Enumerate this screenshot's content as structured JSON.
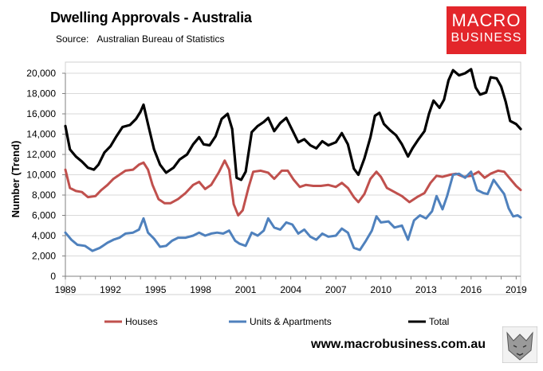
{
  "header": {
    "title": "Dwelling Approvals - Australia",
    "source_label": "Source:",
    "source_text": "Australian Bureau of Statistics"
  },
  "logo": {
    "line1": "MACRO",
    "line2": "BUSINESS"
  },
  "footer": {
    "website": "www.macrobusiness.com.au"
  },
  "colors": {
    "houses": "#c0504d",
    "units": "#4f81bd",
    "total": "#000000"
  },
  "chart_data": {
    "type": "line",
    "ylabel": "Number (Trend)",
    "ylim": [
      0,
      21000
    ],
    "xlim": [
      1989,
      2019.3
    ],
    "yticks": [
      0,
      2000,
      4000,
      6000,
      8000,
      10000,
      12000,
      14000,
      16000,
      18000,
      20000
    ],
    "ytick_labels": [
      "0",
      "2,000",
      "4,000",
      "6,000",
      "8,000",
      "10,000",
      "12,000",
      "14,000",
      "16,000",
      "18,000",
      "20,000"
    ],
    "xticks": [
      1989,
      1992,
      1995,
      1998,
      2001,
      2004,
      2007,
      2010,
      2013,
      2016,
      2019
    ],
    "xtick_labels": [
      "1989",
      "1992",
      "1995",
      "1998",
      "2001",
      "2004",
      "2007",
      "2010",
      "2013",
      "2016",
      "2019"
    ],
    "grid": "horizontal",
    "legend": "bottom",
    "series": [
      {
        "name": "Houses",
        "points": [
          [
            1989.0,
            10500
          ],
          [
            1989.3,
            8700
          ],
          [
            1989.7,
            8400
          ],
          [
            1990.1,
            8300
          ],
          [
            1990.5,
            7800
          ],
          [
            1991.0,
            7900
          ],
          [
            1991.4,
            8500
          ],
          [
            1991.8,
            9000
          ],
          [
            1992.2,
            9600
          ],
          [
            1992.6,
            10000
          ],
          [
            1993.0,
            10400
          ],
          [
            1993.5,
            10500
          ],
          [
            1993.9,
            11000
          ],
          [
            1994.2,
            11200
          ],
          [
            1994.5,
            10500
          ],
          [
            1994.8,
            9000
          ],
          [
            1995.2,
            7600
          ],
          [
            1995.6,
            7200
          ],
          [
            1996.0,
            7200
          ],
          [
            1996.5,
            7600
          ],
          [
            1997.0,
            8200
          ],
          [
            1997.5,
            9000
          ],
          [
            1997.9,
            9300
          ],
          [
            1998.3,
            8600
          ],
          [
            1998.7,
            9000
          ],
          [
            1999.2,
            10200
          ],
          [
            1999.6,
            11400
          ],
          [
            1999.9,
            10500
          ],
          [
            2000.2,
            7100
          ],
          [
            2000.5,
            6000
          ],
          [
            2000.8,
            6500
          ],
          [
            2001.2,
            8800
          ],
          [
            2001.5,
            10300
          ],
          [
            2002.0,
            10400
          ],
          [
            2002.5,
            10200
          ],
          [
            2002.9,
            9600
          ],
          [
            2003.4,
            10400
          ],
          [
            2003.8,
            10400
          ],
          [
            2004.2,
            9500
          ],
          [
            2004.6,
            8800
          ],
          [
            2005.0,
            9000
          ],
          [
            2005.5,
            8900
          ],
          [
            2006.0,
            8900
          ],
          [
            2006.5,
            9000
          ],
          [
            2007.0,
            8800
          ],
          [
            2007.4,
            9200
          ],
          [
            2007.8,
            8700
          ],
          [
            2008.2,
            7800
          ],
          [
            2008.5,
            7300
          ],
          [
            2008.9,
            8100
          ],
          [
            2009.3,
            9600
          ],
          [
            2009.7,
            10300
          ],
          [
            2010.0,
            9800
          ],
          [
            2010.4,
            8700
          ],
          [
            2010.9,
            8300
          ],
          [
            2011.4,
            7900
          ],
          [
            2011.9,
            7300
          ],
          [
            2012.4,
            7800
          ],
          [
            2012.9,
            8200
          ],
          [
            2013.3,
            9200
          ],
          [
            2013.7,
            9900
          ],
          [
            2014.1,
            9800
          ],
          [
            2014.6,
            10000
          ],
          [
            2015.0,
            10100
          ],
          [
            2015.5,
            9800
          ],
          [
            2016.0,
            9900
          ],
          [
            2016.5,
            10300
          ],
          [
            2016.9,
            9700
          ],
          [
            2017.3,
            10100
          ],
          [
            2017.8,
            10400
          ],
          [
            2018.2,
            10300
          ],
          [
            2018.6,
            9600
          ],
          [
            2019.0,
            8900
          ],
          [
            2019.3,
            8500
          ]
        ]
      },
      {
        "name": "Units & Apartments",
        "points": [
          [
            1989.0,
            4300
          ],
          [
            1989.4,
            3600
          ],
          [
            1989.8,
            3100
          ],
          [
            1990.3,
            3000
          ],
          [
            1990.8,
            2500
          ],
          [
            1991.3,
            2800
          ],
          [
            1991.8,
            3300
          ],
          [
            1992.2,
            3600
          ],
          [
            1992.6,
            3800
          ],
          [
            1993.0,
            4200
          ],
          [
            1993.5,
            4300
          ],
          [
            1993.9,
            4600
          ],
          [
            1994.2,
            5700
          ],
          [
            1994.5,
            4300
          ],
          [
            1994.9,
            3700
          ],
          [
            1995.3,
            2900
          ],
          [
            1995.7,
            3000
          ],
          [
            1996.1,
            3500
          ],
          [
            1996.5,
            3800
          ],
          [
            1997.0,
            3800
          ],
          [
            1997.5,
            4000
          ],
          [
            1997.9,
            4300
          ],
          [
            1998.3,
            4000
          ],
          [
            1998.7,
            4200
          ],
          [
            1999.1,
            4300
          ],
          [
            1999.5,
            4200
          ],
          [
            1999.9,
            4500
          ],
          [
            2000.3,
            3500
          ],
          [
            2000.6,
            3200
          ],
          [
            2001.0,
            3000
          ],
          [
            2001.4,
            4300
          ],
          [
            2001.8,
            4000
          ],
          [
            2002.2,
            4500
          ],
          [
            2002.5,
            5700
          ],
          [
            2002.9,
            4800
          ],
          [
            2003.3,
            4600
          ],
          [
            2003.7,
            5300
          ],
          [
            2004.1,
            5100
          ],
          [
            2004.5,
            4200
          ],
          [
            2004.9,
            4600
          ],
          [
            2005.3,
            3900
          ],
          [
            2005.7,
            3600
          ],
          [
            2006.1,
            4200
          ],
          [
            2006.5,
            3900
          ],
          [
            2007.0,
            4000
          ],
          [
            2007.4,
            4700
          ],
          [
            2007.8,
            4300
          ],
          [
            2008.2,
            2800
          ],
          [
            2008.6,
            2600
          ],
          [
            2009.0,
            3500
          ],
          [
            2009.4,
            4500
          ],
          [
            2009.7,
            5900
          ],
          [
            2010.0,
            5300
          ],
          [
            2010.5,
            5400
          ],
          [
            2010.9,
            4800
          ],
          [
            2011.4,
            5000
          ],
          [
            2011.8,
            3600
          ],
          [
            2012.2,
            5500
          ],
          [
            2012.6,
            6000
          ],
          [
            2013.0,
            5700
          ],
          [
            2013.4,
            6400
          ],
          [
            2013.7,
            7900
          ],
          [
            2014.1,
            6600
          ],
          [
            2014.4,
            7900
          ],
          [
            2014.8,
            10000
          ],
          [
            2015.2,
            10100
          ],
          [
            2015.6,
            9700
          ],
          [
            2016.0,
            10300
          ],
          [
            2016.4,
            8500
          ],
          [
            2016.8,
            8200
          ],
          [
            2017.1,
            8100
          ],
          [
            2017.5,
            9500
          ],
          [
            2017.9,
            8700
          ],
          [
            2018.2,
            8100
          ],
          [
            2018.5,
            6700
          ],
          [
            2018.8,
            5900
          ],
          [
            2019.1,
            6000
          ],
          [
            2019.3,
            5800
          ]
        ]
      },
      {
        "name": "Total",
        "points": [
          [
            1989.0,
            14800
          ],
          [
            1989.3,
            12500
          ],
          [
            1989.7,
            11800
          ],
          [
            1990.1,
            11300
          ],
          [
            1990.5,
            10700
          ],
          [
            1990.9,
            10500
          ],
          [
            1991.2,
            11000
          ],
          [
            1991.6,
            12200
          ],
          [
            1992.0,
            12800
          ],
          [
            1992.4,
            13800
          ],
          [
            1992.8,
            14700
          ],
          [
            1993.3,
            14900
          ],
          [
            1993.7,
            15500
          ],
          [
            1994.0,
            16200
          ],
          [
            1994.2,
            16900
          ],
          [
            1994.5,
            15000
          ],
          [
            1994.9,
            12500
          ],
          [
            1995.3,
            11000
          ],
          [
            1995.7,
            10200
          ],
          [
            1996.2,
            10700
          ],
          [
            1996.6,
            11500
          ],
          [
            1997.1,
            12000
          ],
          [
            1997.5,
            13000
          ],
          [
            1997.9,
            13700
          ],
          [
            1998.2,
            13000
          ],
          [
            1998.6,
            12900
          ],
          [
            1999.0,
            13800
          ],
          [
            1999.4,
            15500
          ],
          [
            1999.8,
            16000
          ],
          [
            2000.1,
            14500
          ],
          [
            2000.4,
            9700
          ],
          [
            2000.7,
            9500
          ],
          [
            2001.0,
            10300
          ],
          [
            2001.4,
            14200
          ],
          [
            2001.8,
            14800
          ],
          [
            2002.2,
            15200
          ],
          [
            2002.5,
            15600
          ],
          [
            2002.9,
            14300
          ],
          [
            2003.3,
            15100
          ],
          [
            2003.7,
            15600
          ],
          [
            2004.1,
            14400
          ],
          [
            2004.5,
            13200
          ],
          [
            2004.9,
            13500
          ],
          [
            2005.3,
            12900
          ],
          [
            2005.7,
            12600
          ],
          [
            2006.1,
            13300
          ],
          [
            2006.5,
            12900
          ],
          [
            2007.0,
            13200
          ],
          [
            2007.4,
            14100
          ],
          [
            2007.8,
            13000
          ],
          [
            2008.2,
            10600
          ],
          [
            2008.5,
            10000
          ],
          [
            2008.9,
            11600
          ],
          [
            2009.3,
            13700
          ],
          [
            2009.6,
            15800
          ],
          [
            2009.9,
            16100
          ],
          [
            2010.2,
            15000
          ],
          [
            2010.6,
            14400
          ],
          [
            2011.0,
            13900
          ],
          [
            2011.4,
            13000
          ],
          [
            2011.8,
            11800
          ],
          [
            2012.1,
            12600
          ],
          [
            2012.5,
            13500
          ],
          [
            2012.9,
            14300
          ],
          [
            2013.2,
            16000
          ],
          [
            2013.5,
            17300
          ],
          [
            2013.9,
            16600
          ],
          [
            2014.2,
            17400
          ],
          [
            2014.5,
            19300
          ],
          [
            2014.8,
            20300
          ],
          [
            2015.2,
            19800
          ],
          [
            2015.6,
            20000
          ],
          [
            2016.0,
            20400
          ],
          [
            2016.3,
            18600
          ],
          [
            2016.6,
            17900
          ],
          [
            2017.0,
            18100
          ],
          [
            2017.3,
            19600
          ],
          [
            2017.7,
            19500
          ],
          [
            2018.0,
            18700
          ],
          [
            2018.3,
            17200
          ],
          [
            2018.6,
            15300
          ],
          [
            2019.0,
            15000
          ],
          [
            2019.3,
            14500
          ]
        ]
      }
    ]
  }
}
